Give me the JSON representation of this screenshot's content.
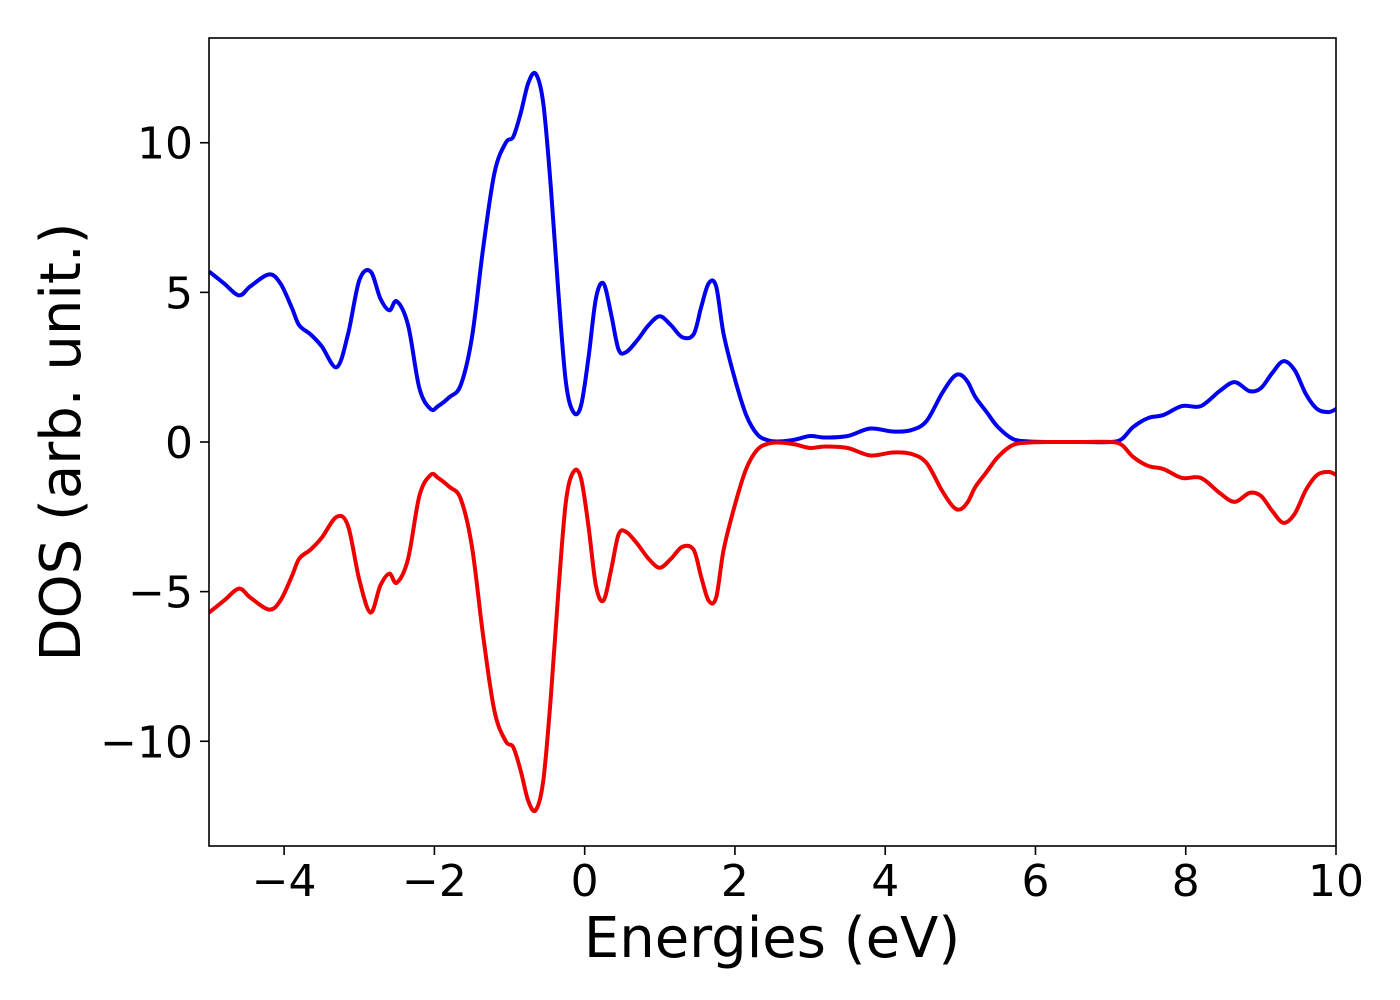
{
  "chart_data": {
    "type": "line",
    "title": "",
    "xlabel": "Energies (eV)",
    "ylabel": "DOS (arb. unit.)",
    "xlim": [
      -5,
      10
    ],
    "ylim": [
      -13.5,
      13.5
    ],
    "x_ticks": [
      -4,
      -2,
      0,
      2,
      4,
      6,
      8,
      10
    ],
    "x_tick_labels": [
      "−4",
      "−2",
      "0",
      "2",
      "4",
      "6",
      "8",
      "10"
    ],
    "y_ticks": [
      -10,
      -5,
      0,
      5,
      10
    ],
    "y_tick_labels": [
      "−10",
      "−5",
      "0",
      "5",
      "10"
    ],
    "grid": false,
    "legend": "none",
    "series": [
      {
        "color": "#0000ee",
        "x": [
          -5.0,
          -4.8,
          -4.6,
          -4.45,
          -4.2,
          -4.05,
          -3.9,
          -3.8,
          -3.65,
          -3.5,
          -3.3,
          -3.15,
          -3.0,
          -2.85,
          -2.72,
          -2.6,
          -2.5,
          -2.35,
          -2.2,
          -2.05,
          -1.95,
          -1.8,
          -1.65,
          -1.5,
          -1.35,
          -1.2,
          -1.05,
          -0.95,
          -0.85,
          -0.75,
          -0.65,
          -0.55,
          -0.45,
          -0.35,
          -0.25,
          -0.15,
          -0.05,
          0.05,
          0.15,
          0.25,
          0.35,
          0.45,
          0.55,
          0.7,
          0.85,
          1.0,
          1.15,
          1.3,
          1.45,
          1.55,
          1.65,
          1.75,
          1.85,
          2.0,
          2.15,
          2.3,
          2.45,
          2.6,
          2.8,
          3.0,
          3.2,
          3.5,
          3.8,
          4.1,
          4.35,
          4.55,
          4.75,
          4.9,
          5.0,
          5.1,
          5.2,
          5.35,
          5.5,
          5.7,
          5.9,
          6.2,
          6.6,
          7.0,
          7.15,
          7.3,
          7.5,
          7.7,
          7.95,
          8.2,
          8.45,
          8.65,
          8.85,
          9.0,
          9.15,
          9.3,
          9.45,
          9.6,
          9.75,
          9.9,
          10.0
        ],
        "values": [
          5.7,
          5.3,
          4.9,
          5.2,
          5.6,
          5.3,
          4.5,
          3.9,
          3.6,
          3.2,
          2.5,
          3.6,
          5.4,
          5.7,
          4.8,
          4.4,
          4.7,
          3.9,
          1.8,
          1.1,
          1.2,
          1.5,
          1.9,
          3.5,
          6.5,
          9.0,
          10.0,
          10.2,
          11.0,
          12.0,
          12.3,
          11.3,
          8.5,
          5.0,
          2.0,
          1.0,
          1.2,
          2.8,
          4.8,
          5.3,
          4.3,
          3.1,
          3.0,
          3.4,
          3.9,
          4.2,
          3.9,
          3.5,
          3.6,
          4.5,
          5.3,
          5.2,
          3.6,
          2.1,
          0.9,
          0.25,
          0.05,
          0.02,
          0.08,
          0.2,
          0.15,
          0.2,
          0.45,
          0.35,
          0.4,
          0.7,
          1.6,
          2.15,
          2.25,
          2.0,
          1.5,
          1.0,
          0.5,
          0.1,
          0.02,
          0.0,
          0.0,
          0.0,
          0.1,
          0.5,
          0.8,
          0.9,
          1.2,
          1.2,
          1.7,
          2.0,
          1.7,
          1.8,
          2.3,
          2.7,
          2.4,
          1.6,
          1.1,
          1.0,
          1.1
        ]
      },
      {
        "color": "#ee0000",
        "x": [
          -5.0,
          -4.8,
          -4.6,
          -4.45,
          -4.2,
          -4.05,
          -3.9,
          -3.8,
          -3.65,
          -3.5,
          -3.3,
          -3.15,
          -3.0,
          -2.85,
          -2.72,
          -2.6,
          -2.5,
          -2.35,
          -2.2,
          -2.05,
          -1.95,
          -1.8,
          -1.65,
          -1.5,
          -1.35,
          -1.2,
          -1.05,
          -0.95,
          -0.85,
          -0.75,
          -0.65,
          -0.55,
          -0.45,
          -0.35,
          -0.25,
          -0.15,
          -0.05,
          0.05,
          0.15,
          0.25,
          0.35,
          0.45,
          0.55,
          0.7,
          0.85,
          1.0,
          1.15,
          1.3,
          1.45,
          1.55,
          1.65,
          1.75,
          1.85,
          2.0,
          2.15,
          2.3,
          2.45,
          2.6,
          2.8,
          3.0,
          3.2,
          3.5,
          3.8,
          4.1,
          4.35,
          4.55,
          4.75,
          4.9,
          5.0,
          5.1,
          5.2,
          5.35,
          5.5,
          5.7,
          5.9,
          6.2,
          6.6,
          7.0,
          7.15,
          7.3,
          7.5,
          7.7,
          7.95,
          8.2,
          8.45,
          8.65,
          8.85,
          9.0,
          9.15,
          9.3,
          9.45,
          9.6,
          9.75,
          9.9,
          10.0
        ],
        "values": [
          -5.7,
          -5.3,
          -4.9,
          -5.2,
          -5.6,
          -5.3,
          -4.5,
          -3.9,
          -3.6,
          -3.2,
          -2.5,
          -2.8,
          -4.6,
          -5.7,
          -4.8,
          -4.4,
          -4.7,
          -3.9,
          -1.8,
          -1.1,
          -1.2,
          -1.5,
          -1.9,
          -3.5,
          -6.5,
          -9.0,
          -10.0,
          -10.2,
          -11.0,
          -12.0,
          -12.3,
          -11.3,
          -8.5,
          -5.0,
          -2.0,
          -1.0,
          -1.2,
          -2.8,
          -4.8,
          -5.3,
          -4.3,
          -3.1,
          -3.0,
          -3.4,
          -3.9,
          -4.2,
          -3.9,
          -3.5,
          -3.6,
          -4.5,
          -5.3,
          -5.2,
          -3.6,
          -2.1,
          -0.9,
          -0.25,
          -0.05,
          -0.02,
          -0.08,
          -0.2,
          -0.15,
          -0.2,
          -0.45,
          -0.35,
          -0.4,
          -0.7,
          -1.6,
          -2.15,
          -2.25,
          -2.0,
          -1.5,
          -1.0,
          -0.5,
          -0.1,
          -0.02,
          0.0,
          0.0,
          0.0,
          -0.1,
          -0.5,
          -0.8,
          -0.9,
          -1.2,
          -1.2,
          -1.7,
          -2.0,
          -1.7,
          -1.8,
          -2.3,
          -2.7,
          -2.4,
          -1.6,
          -1.1,
          -1.0,
          -1.1
        ]
      }
    ]
  }
}
